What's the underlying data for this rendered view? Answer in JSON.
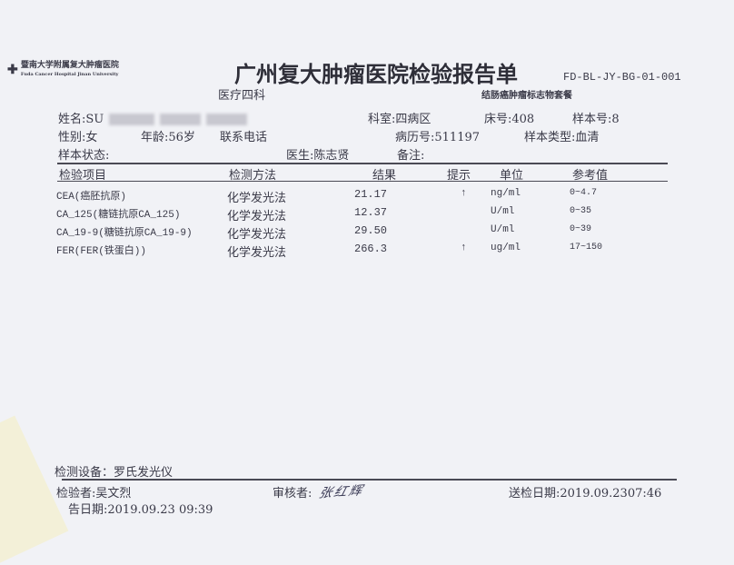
{
  "header": {
    "logo_cn": "暨南大学附属复大肿瘤医院",
    "logo_en": "Fuda Cancer Hospital Jinan University",
    "title": "广州复大肿瘤医院检验报告单",
    "form_code": "FD-BL-JY-BG-01-001",
    "department": "医疗四科",
    "package": "结肠癌肿瘤标志物套餐"
  },
  "patient": {
    "name_label": "姓名:",
    "name_value": "SU",
    "ward": "科室:四病区",
    "bed": "床号:408",
    "sample_no": "样本号:8",
    "sex": "性别:女",
    "age": "年龄:56岁",
    "phone_label": "联系电话",
    "record_no": "病历号:511197",
    "sample_type": "样本类型:血清",
    "sample_status": "样本状态:",
    "doctor": "医生:陈志贤",
    "remark": "备注:"
  },
  "table": {
    "headers": [
      "检验项目",
      "检测方法",
      "结果",
      "提示",
      "单位",
      "参考值"
    ],
    "rows": [
      {
        "item": "CEA(癌胚抗原)",
        "method": "化学发光法",
        "result": "21.17",
        "flag": "↑",
        "unit": "ng/ml",
        "ref": "0~4.7"
      },
      {
        "item": "CA_125(糖链抗原CA_125)",
        "method": "化学发光法",
        "result": "12.37",
        "flag": "",
        "unit": "U/ml",
        "ref": "0~35"
      },
      {
        "item": "CA_19-9(糖链抗原CA_19-9)",
        "method": "化学发光法",
        "result": "29.50",
        "flag": "",
        "unit": "U/ml",
        "ref": "0~39"
      },
      {
        "item": "FER(FER(铁蛋白))",
        "method": "化学发光法",
        "result": "266.3",
        "flag": "↑",
        "unit": "ug/ml",
        "ref": "17~150"
      }
    ]
  },
  "footer": {
    "device": "检测设备：罗氏发光仪",
    "tester": "检验者:吴文烈",
    "reviewer_label": "审核者:",
    "reviewer_signature": "张红辉",
    "submit_date": "送检日期:2019.09.2307:46",
    "report_date": "告日期:2019.09.23 09:39"
  }
}
